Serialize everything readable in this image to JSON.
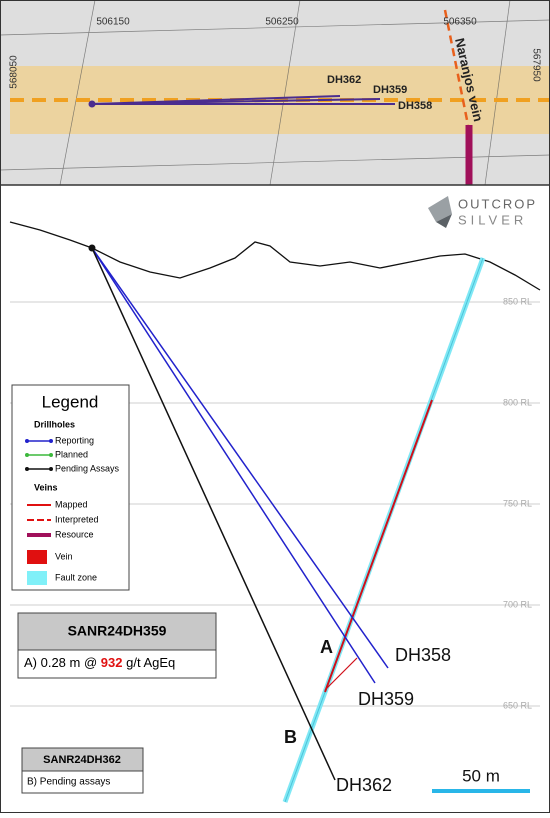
{
  "map": {
    "easting_labels": [
      "506150",
      "506250",
      "506350"
    ],
    "northing_labels": [
      "568050",
      "567950"
    ],
    "hole_labels": [
      "DH362",
      "DH359",
      "DH358"
    ],
    "vein_label": "Naranjos vein"
  },
  "logo": {
    "line1": "OUTCROP",
    "line2": "SILVER"
  },
  "section": {
    "rl_labels": [
      "850 RL",
      "800 RL",
      "750 RL",
      "700 RL",
      "650 RL"
    ],
    "hole_labels": [
      "DH358",
      "DH359",
      "DH362"
    ],
    "intercept_labels": [
      "A",
      "B"
    ],
    "scale_label": "50 m"
  },
  "legend": {
    "title": "Legend",
    "groups": [
      {
        "heading": "Drillholes",
        "items": [
          "Reporting",
          "Planned",
          "Pending Assays"
        ]
      },
      {
        "heading": "Veins",
        "items": [
          "Mapped",
          "Interpreted",
          "Resource"
        ]
      }
    ],
    "fills": [
      "Vein",
      "Fault zone"
    ]
  },
  "callouts": [
    {
      "title": "SANR24DH359",
      "text_parts": [
        "A) 0.28 m @ ",
        "932",
        " g/t AgEq"
      ]
    },
    {
      "title": "SANR24DH362",
      "text_parts": [
        "B) Pending assays"
      ]
    }
  ]
}
